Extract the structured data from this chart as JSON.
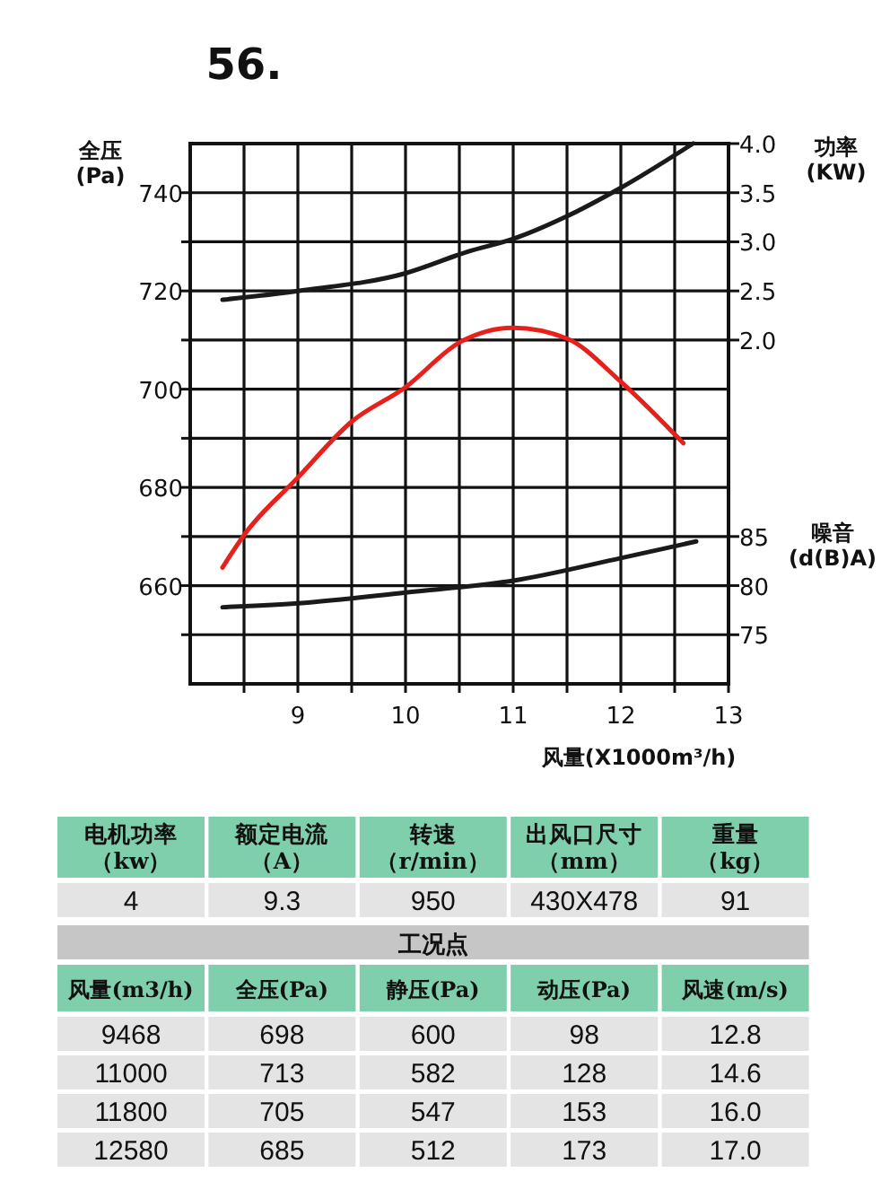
{
  "chart_data": [
    {
      "type": "line",
      "title": "56.",
      "xlabel": "风量(X1000m³/h)",
      "ylabel": "全压\n(Pa)",
      "y2label": "功率\n(KW)",
      "y3label": "噪音\n(d(B)A)",
      "xlim": [
        8,
        13
      ],
      "xticks": [
        {
          "value": 8.5,
          "label": null
        },
        9,
        {
          "value": 9.5,
          "label": null
        },
        10,
        {
          "value": 10.5,
          "label": null
        },
        11,
        {
          "value": 11.5,
          "label": null
        },
        12,
        {
          "value": 12.5,
          "label": null
        },
        13
      ],
      "ylim": [
        640,
        750
      ],
      "yticks": [
        {
          "value": 650,
          "label": null
        },
        660,
        {
          "value": 670,
          "label": null
        },
        680,
        {
          "value": 690,
          "label": null
        },
        700,
        {
          "value": 710,
          "label": null
        },
        720,
        {
          "value": 730,
          "label": null
        },
        740
      ],
      "y2lim": [
        -1.5,
        4.0
      ],
      "y2ticks": [
        {
          "value": 2,
          "label": "2.0"
        },
        {
          "value": 2.5,
          "label": "2.5"
        },
        {
          "value": 3,
          "label": "3.0"
        },
        {
          "value": 3.5,
          "label": "3.5"
        },
        {
          "value": 4,
          "label": "4.0"
        }
      ],
      "y3lim": [
        70,
        125
      ],
      "y3ticks": [
        75,
        80,
        85
      ],
      "grid": true,
      "line_style": "solid",
      "series": [
        {
          "color": "#e8201c",
          "x": [
            8.3,
            8.5,
            9,
            9.5,
            10,
            10.5,
            11,
            11.5,
            12,
            12.58
          ],
          "values": [
            663.7,
            670.3,
            682,
            693.4,
            700.4,
            709.5,
            712.5,
            710.3,
            701.5,
            689
          ]
        },
        {
          "color": "#1a1a1a",
          "axis": "y2",
          "x": [
            8.3,
            9,
            10,
            10.58,
            11,
            11.48,
            12,
            12.67
          ],
          "values": [
            2.41,
            2.5,
            2.68,
            2.9,
            3.03,
            3.25,
            3.55,
            4.0
          ]
        },
        {
          "color": "#1a1a1a",
          "axis": "y3",
          "x": [
            8.3,
            9,
            10,
            11,
            12,
            12.7
          ],
          "values": [
            77.8,
            78.2,
            79.3,
            80.5,
            82.8,
            84.5
          ]
        }
      ]
    },
    {
      "type": "other",
      "categories": [
        "电机功率（kw）",
        "额定电流（A）",
        "转速（r/min）",
        "出风口尺寸（mm）",
        "重量（kg）"
      ],
      "cell_labels": [
        [
          "4",
          "9.3",
          "950",
          "430X478",
          "91"
        ]
      ]
    },
    {
      "type": "other",
      "title": "工况点",
      "categories": [
        "风量(m3/h)",
        "全压(Pa)",
        "静压(Pa)",
        "动压(Pa)",
        "风速(m/s)"
      ],
      "cell_labels": [
        [
          "9468",
          "698",
          "600",
          "98",
          "12.8"
        ],
        [
          "11000",
          "713",
          "582",
          "128",
          "14.6"
        ],
        [
          "11800",
          "705",
          "547",
          "153",
          "16.0"
        ],
        [
          "12580",
          "685",
          "512",
          "173",
          "17.0"
        ]
      ]
    }
  ]
}
